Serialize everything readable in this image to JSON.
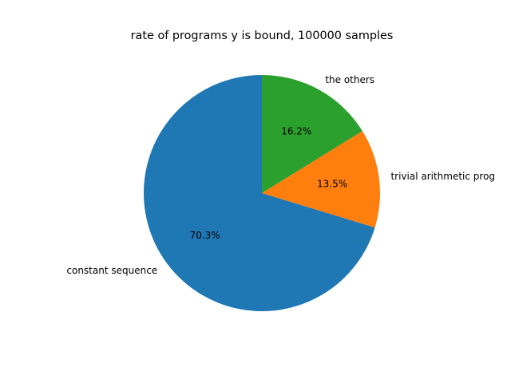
{
  "chart_data": {
    "type": "pie",
    "title": "rate of programs y is bound, 100000 samples",
    "slices": [
      {
        "label": "constant sequence",
        "value": 70.3,
        "pct_label": "70.3%",
        "color": "#1f77b4"
      },
      {
        "label": "trivial arithmetic prog",
        "value": 13.5,
        "pct_label": "13.5%",
        "color": "#ff7f0e"
      },
      {
        "label": "the others",
        "value": 16.2,
        "pct_label": "16.2%",
        "color": "#2ca02c"
      }
    ],
    "start_angle": 90,
    "direction": "counterclockwise"
  }
}
